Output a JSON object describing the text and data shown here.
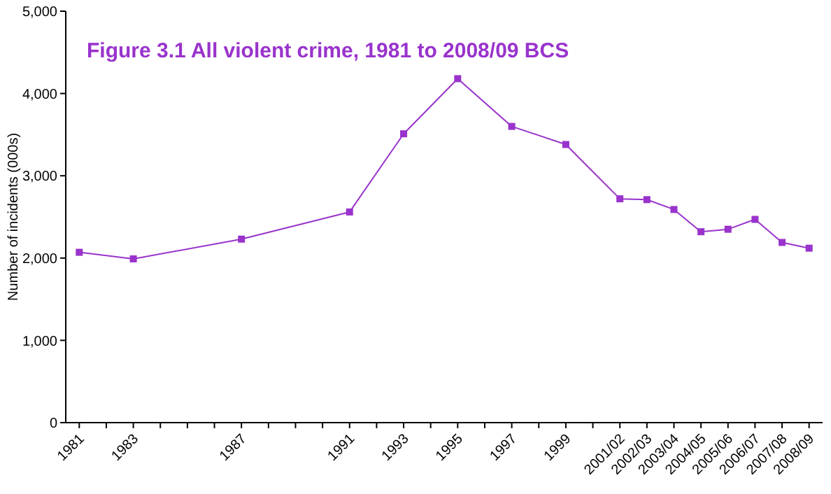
{
  "chart_data": {
    "type": "line",
    "title": "Figure 3.1 All violent crime, 1981 to 2008/09 BCS",
    "ylabel": "Number of incidents (000s)",
    "x": [
      1981,
      1983,
      1987,
      1991,
      1993,
      1995,
      1997,
      1999,
      2001,
      2002,
      2003,
      2004,
      2005,
      2006,
      2007,
      2008
    ],
    "series": [
      {
        "color": "#9933cc",
        "values": [
          2070,
          1990,
          2230,
          2560,
          3510,
          4180,
          3600,
          3380,
          2720,
          2710,
          2590,
          2320,
          2350,
          2470,
          2190,
          2120
        ]
      }
    ],
    "xlim": [
      1980.5,
      2008.5
    ],
    "xticks": [
      {
        "value": 1981,
        "label": "1981"
      },
      {
        "value": 1982,
        "label": null
      },
      {
        "value": 1983,
        "label": "1983"
      },
      {
        "value": 1984,
        "label": null
      },
      {
        "value": 1985,
        "label": null
      },
      {
        "value": 1986,
        "label": null
      },
      {
        "value": 1987,
        "label": "1987"
      },
      {
        "value": 1988,
        "label": null
      },
      {
        "value": 1989,
        "label": null
      },
      {
        "value": 1990,
        "label": null
      },
      {
        "value": 1991,
        "label": "1991"
      },
      {
        "value": 1992,
        "label": null
      },
      {
        "value": 1993,
        "label": "1993"
      },
      {
        "value": 1994,
        "label": null
      },
      {
        "value": 1995,
        "label": "1995"
      },
      {
        "value": 1996,
        "label": null
      },
      {
        "value": 1997,
        "label": "1997"
      },
      {
        "value": 1998,
        "label": null
      },
      {
        "value": 1999,
        "label": "1999"
      },
      {
        "value": 2000,
        "label": null
      },
      {
        "value": 2001,
        "label": "2001/02"
      },
      {
        "value": 2002,
        "label": "2002/03"
      },
      {
        "value": 2003,
        "label": "2003/04"
      },
      {
        "value": 2004,
        "label": "2004/05"
      },
      {
        "value": 2005,
        "label": "2005/06"
      },
      {
        "value": 2006,
        "label": "2006/07"
      },
      {
        "value": 2007,
        "label": "2007/08"
      },
      {
        "value": 2008,
        "label": "2008/09"
      }
    ],
    "ylim": [
      0,
      5000
    ],
    "yticks": [
      0,
      {
        "value": 1000,
        "label": "1,000"
      },
      {
        "value": 2000,
        "label": "2,000"
      },
      {
        "value": 3000,
        "label": "3,000"
      },
      {
        "value": 4000,
        "label": "4,000"
      },
      {
        "value": 5000,
        "label": "5,000"
      }
    ],
    "grid": false,
    "legend": false,
    "marker": "square",
    "line_style": "solid"
  }
}
